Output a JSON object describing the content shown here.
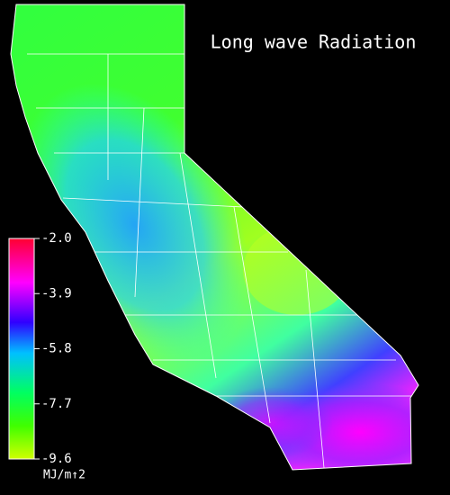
{
  "title": "Long wave Radiation",
  "colorbar": {
    "clim": [
      -9.6,
      -2.0
    ],
    "ticks": [
      {
        "value": -2.0,
        "label": "-2.0"
      },
      {
        "value": -3.9,
        "label": "-3.9"
      },
      {
        "value": -5.8,
        "label": "-5.8"
      },
      {
        "value": -7.7,
        "label": "-7.7"
      },
      {
        "value": -9.6,
        "label": "-9.6"
      }
    ],
    "unit": "MJ/m↑2"
  }
}
